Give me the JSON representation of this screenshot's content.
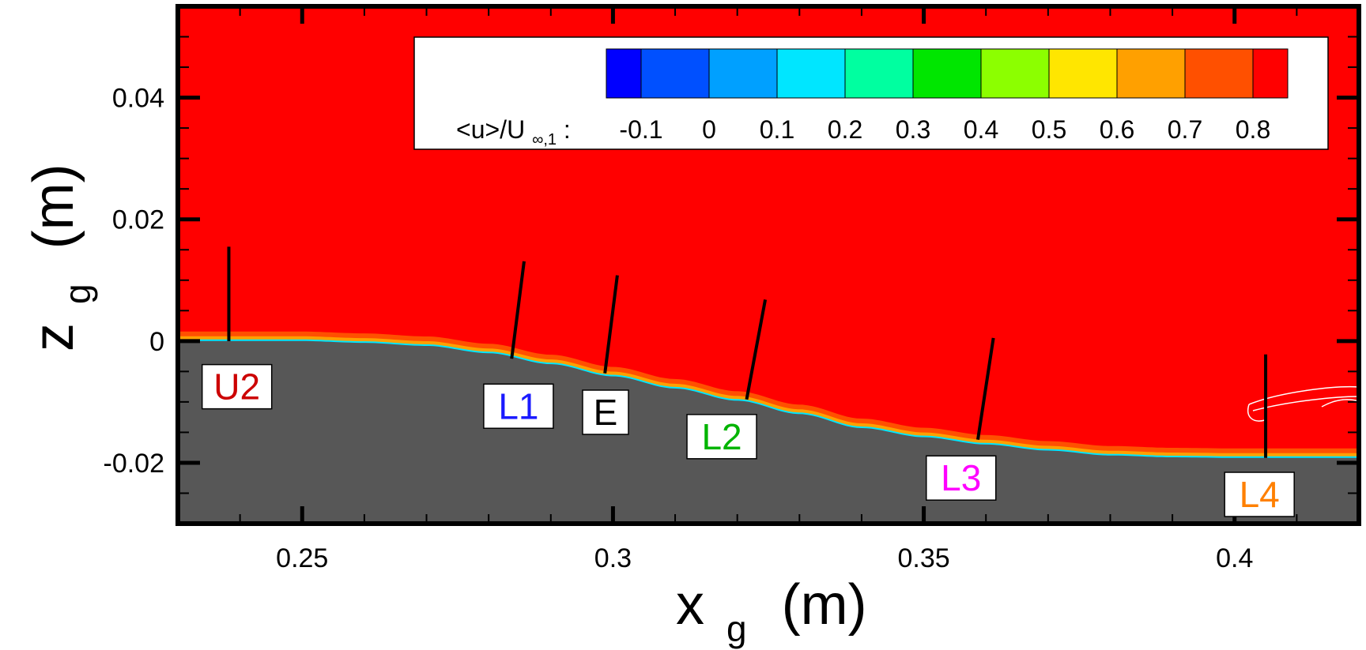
{
  "chart_data": {
    "type": "heatmap",
    "variable": "<u>/U",
    "variable_sub": "∞,1",
    "variable_suffix": ":",
    "xlabel_main": "x",
    "xlabel_sub": "g",
    "xlabel_unit": "(m)",
    "ylabel_main": "z",
    "ylabel_sub": "g",
    "ylabel_unit": "(m)",
    "xlim": [
      0.23,
      0.42
    ],
    "ylim": [
      -0.03,
      0.055
    ],
    "x_ticks": [
      0.25,
      0.3,
      0.35,
      0.4
    ],
    "x_tick_labels": [
      "0.25",
      "0.3",
      "0.35",
      "0.4"
    ],
    "y_ticks": [
      0.04,
      0.02,
      0,
      -0.02
    ],
    "y_tick_labels": [
      "0.04",
      "0.02",
      "0",
      "-0.02"
    ],
    "colorbar": {
      "levels": [
        -0.15,
        -0.1,
        0,
        0.1,
        0.2,
        0.3,
        0.4,
        0.5,
        0.6,
        0.7,
        0.8,
        0.85
      ],
      "colors": [
        "#0000ff",
        "#0050ff",
        "#00a0ff",
        "#00e6ff",
        "#00ffa0",
        "#00e600",
        "#8cff00",
        "#ffe600",
        "#ffa000",
        "#ff5000",
        "#ff0000"
      ],
      "tick_values": [
        -0.1,
        0,
        0.1,
        0.2,
        0.3,
        0.4,
        0.5,
        0.6,
        0.7,
        0.8
      ],
      "tick_labels": [
        "-0.1",
        "0",
        "0.1",
        "0.2",
        "0.3",
        "0.4",
        "0.5",
        "0.6",
        "0.7",
        "0.8"
      ]
    },
    "surface_profile": [
      [
        0.23,
        0.0
      ],
      [
        0.25,
        0.0
      ],
      [
        0.26,
        -0.0003
      ],
      [
        0.27,
        -0.0008
      ],
      [
        0.28,
        -0.002
      ],
      [
        0.29,
        -0.0038
      ],
      [
        0.3,
        -0.0058
      ],
      [
        0.31,
        -0.0078
      ],
      [
        0.32,
        -0.0098
      ],
      [
        0.33,
        -0.012
      ],
      [
        0.34,
        -0.0143
      ],
      [
        0.35,
        -0.0158
      ],
      [
        0.36,
        -0.017
      ],
      [
        0.37,
        -0.018
      ],
      [
        0.38,
        -0.0188
      ],
      [
        0.39,
        -0.0191
      ],
      [
        0.4,
        -0.0192
      ],
      [
        0.42,
        -0.0192
      ]
    ],
    "colors": {
      "freestream": "#ff0000",
      "wall": "#575757",
      "layer_outer": "#ff5000",
      "layer_mid": "#ffa000",
      "layer_inner": "#00e6ff"
    },
    "profile_lines": [
      {
        "name": "U2",
        "x0": 0.2382,
        "z0": 0.0,
        "x1": 0.2382,
        "z1": 0.0155
      },
      {
        "name": "L1",
        "x0": 0.2837,
        "z0": -0.0029,
        "x1": 0.2857,
        "z1": 0.0131
      },
      {
        "name": "E",
        "x0": 0.2987,
        "z0": -0.0053,
        "x1": 0.3007,
        "z1": 0.0108
      },
      {
        "name": "L2",
        "x0": 0.3215,
        "z0": -0.0096,
        "x1": 0.3245,
        "z1": 0.0068
      },
      {
        "name": "L3",
        "x0": 0.3587,
        "z0": -0.0162,
        "x1": 0.3612,
        "z1": 0.0005
      },
      {
        "name": "L4",
        "x0": 0.405,
        "z0": -0.0192,
        "x1": 0.405,
        "z1": -0.0022
      }
    ],
    "station_labels": [
      {
        "text": "U2",
        "color": "#cc0000",
        "x": 0.2395,
        "z": -0.0075
      },
      {
        "text": "L1",
        "color": "#1a1aff",
        "x": 0.2848,
        "z": -0.0107
      },
      {
        "text": "E",
        "color": "#000000",
        "x": 0.2988,
        "z": -0.0117
      },
      {
        "text": "L2",
        "color": "#00b400",
        "x": 0.3175,
        "z": -0.0157
      },
      {
        "text": "L3",
        "color": "#ff00ff",
        "x": 0.356,
        "z": -0.0225
      },
      {
        "text": "L4",
        "color": "#ff8000",
        "x": 0.404,
        "z": -0.0252
      }
    ]
  }
}
